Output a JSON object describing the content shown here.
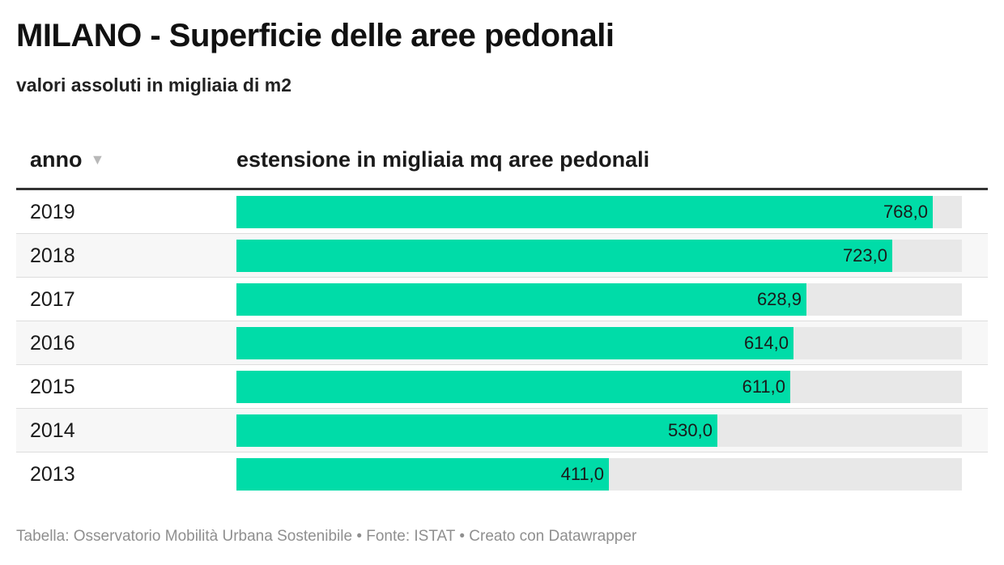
{
  "title": "MILANO - Superficie delle aree pedonali",
  "subtitle": "valori assoluti in migliaia di m2",
  "table": {
    "columns": {
      "year": "anno",
      "value": "estensione in migliaia mq aree pedonali"
    },
    "sort_icon": "sort-descending-icon"
  },
  "chart_data": {
    "type": "bar",
    "orientation": "horizontal",
    "title": "MILANO - Superficie delle aree pedonali",
    "subtitle": "valori assoluti in migliaia di m2",
    "xlabel": "anno",
    "ylabel": "estensione in migliaia mq aree pedonali",
    "categories": [
      "2019",
      "2018",
      "2017",
      "2016",
      "2015",
      "2014",
      "2013"
    ],
    "values": [
      768.0,
      723.0,
      628.9,
      614.0,
      611.0,
      530.0,
      411.0
    ],
    "labels": [
      "768,0",
      "723,0",
      "628,9",
      "614,0",
      "611,0",
      "530,0",
      "411,0"
    ],
    "max": 800,
    "bar_color": "#00dca8",
    "track_color": "#e8e8e8"
  },
  "footer": "Tabella: Osservatorio Mobilità Urbana Sostenibile • Fonte: ISTAT • Creato con Datawrapper"
}
